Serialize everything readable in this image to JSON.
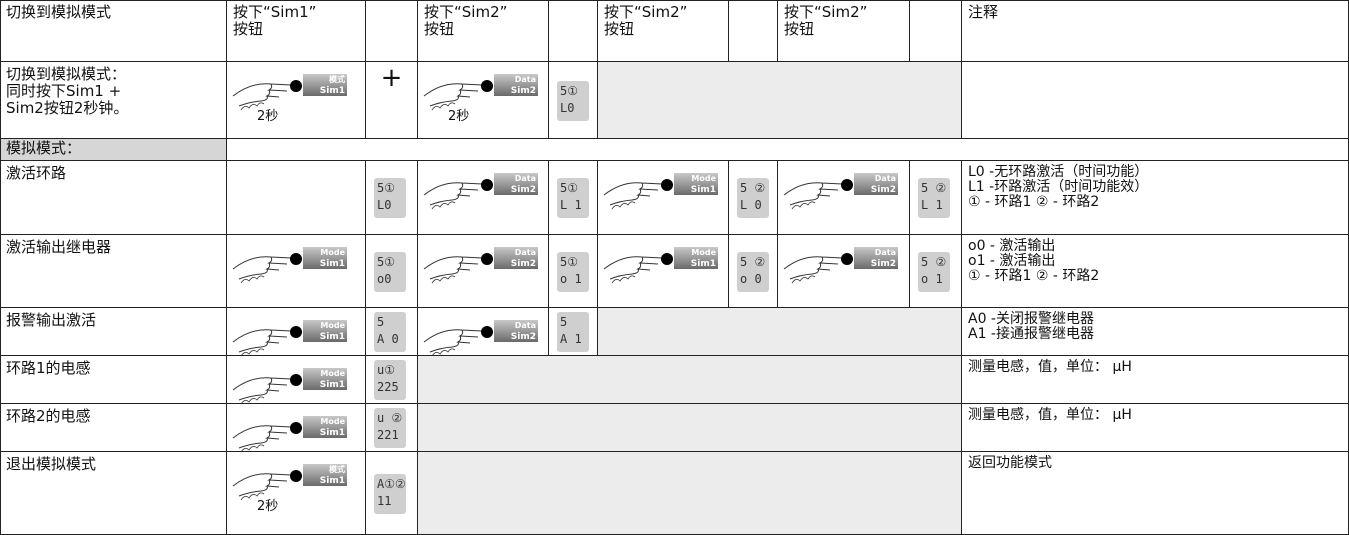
{
  "header": {
    "title": "切换到模拟模式",
    "steps": [
      [
        "按下“Sim1”",
        "按钮"
      ],
      [
        "按下“Sim2”",
        "按钮"
      ],
      [
        "按下“Sim2”",
        "按钮"
      ],
      [
        "按下“Sim2”",
        "按钮"
      ]
    ],
    "notes": "注释"
  },
  "rows": [
    {
      "label": [
        "切换到模拟模式：",
        "同时按下Sim1 +",
        "Sim2按钮2秒钟。"
      ],
      "items": [
        {
          "button": [
            "模式",
            "Sim1"
          ],
          "time": "2秒"
        },
        {
          "symbol": "+"
        },
        {
          "button": [
            "Data",
            "Sim2"
          ],
          "time": "2秒"
        },
        {
          "display": [
            "5①",
            "L0"
          ]
        }
      ]
    },
    {
      "label": [
        "模拟模式："
      ]
    },
    {
      "label": [
        "激活环路"
      ],
      "items": [
        {
          "display": [
            "5①",
            "L0"
          ]
        },
        {
          "button": [
            "Data",
            "Sim2"
          ]
        },
        {
          "display": [
            "5①",
            "L 1"
          ]
        },
        {
          "button": [
            "Mode",
            "Sim1"
          ]
        },
        {
          "display": [
            "5 ②",
            "L 0"
          ]
        },
        {
          "button": [
            "Data",
            "Sim2"
          ]
        },
        {
          "display": [
            "5 ②",
            "L 1"
          ]
        }
      ],
      "notes": [
        "L0 -无环路激活（时间功能）",
        "L1 -环路激活（时间功能效）",
        "① - 环路1 ② - 环路2"
      ]
    },
    {
      "label": [
        "激活输出继电器"
      ],
      "items": [
        {
          "button": [
            "Mode",
            "Sim1"
          ]
        },
        {
          "display": [
            "5①",
            "o0"
          ]
        },
        {
          "button": [
            "Data",
            "Sim2"
          ]
        },
        {
          "display": [
            "5①",
            "o 1"
          ]
        },
        {
          "button": [
            "Mode",
            "Sim1"
          ]
        },
        {
          "display": [
            "5 ②",
            "o 0"
          ]
        },
        {
          "button": [
            "Data",
            "Sim2"
          ]
        },
        {
          "display": [
            "5 ②",
            "o 1"
          ]
        }
      ],
      "notes": [
        "o0 - 激活输出",
        "o1 - 激活输出",
        "① - 环路1 ② - 环路2"
      ]
    },
    {
      "label": [
        "报警输出激活"
      ],
      "items": [
        {
          "button": [
            "Mode",
            "Sim1"
          ]
        },
        {
          "display": [
            "5",
            "A 0"
          ]
        },
        {
          "button": [
            "Data",
            "Sim2"
          ]
        },
        {
          "display": [
            "5",
            "A 1"
          ]
        }
      ],
      "notes": [
        "A0 -关闭报警继电器",
        "A1 -接通报警继电器"
      ]
    },
    {
      "label": [
        "环路1的电感"
      ],
      "items": [
        {
          "button": [
            "Mode",
            "Sim1"
          ]
        },
        {
          "display": [
            "u①",
            "225"
          ]
        }
      ],
      "notes": [
        "测量电感，值，单位： µH"
      ]
    },
    {
      "label": [
        "环路2的电感"
      ],
      "items": [
        {
          "button": [
            "Mode",
            "Sim1"
          ]
        },
        {
          "display": [
            "u ②",
            "221"
          ]
        }
      ],
      "notes": [
        "测量电感，值，单位： µH"
      ]
    },
    {
      "label": [
        "退出模拟模式"
      ],
      "items": [
        {
          "button": [
            "模式",
            "Sim1"
          ],
          "time": "2秒"
        },
        {
          "display": [
            "A①②",
            "11"
          ]
        }
      ],
      "notes": [
        "返回功能模式"
      ]
    }
  ]
}
